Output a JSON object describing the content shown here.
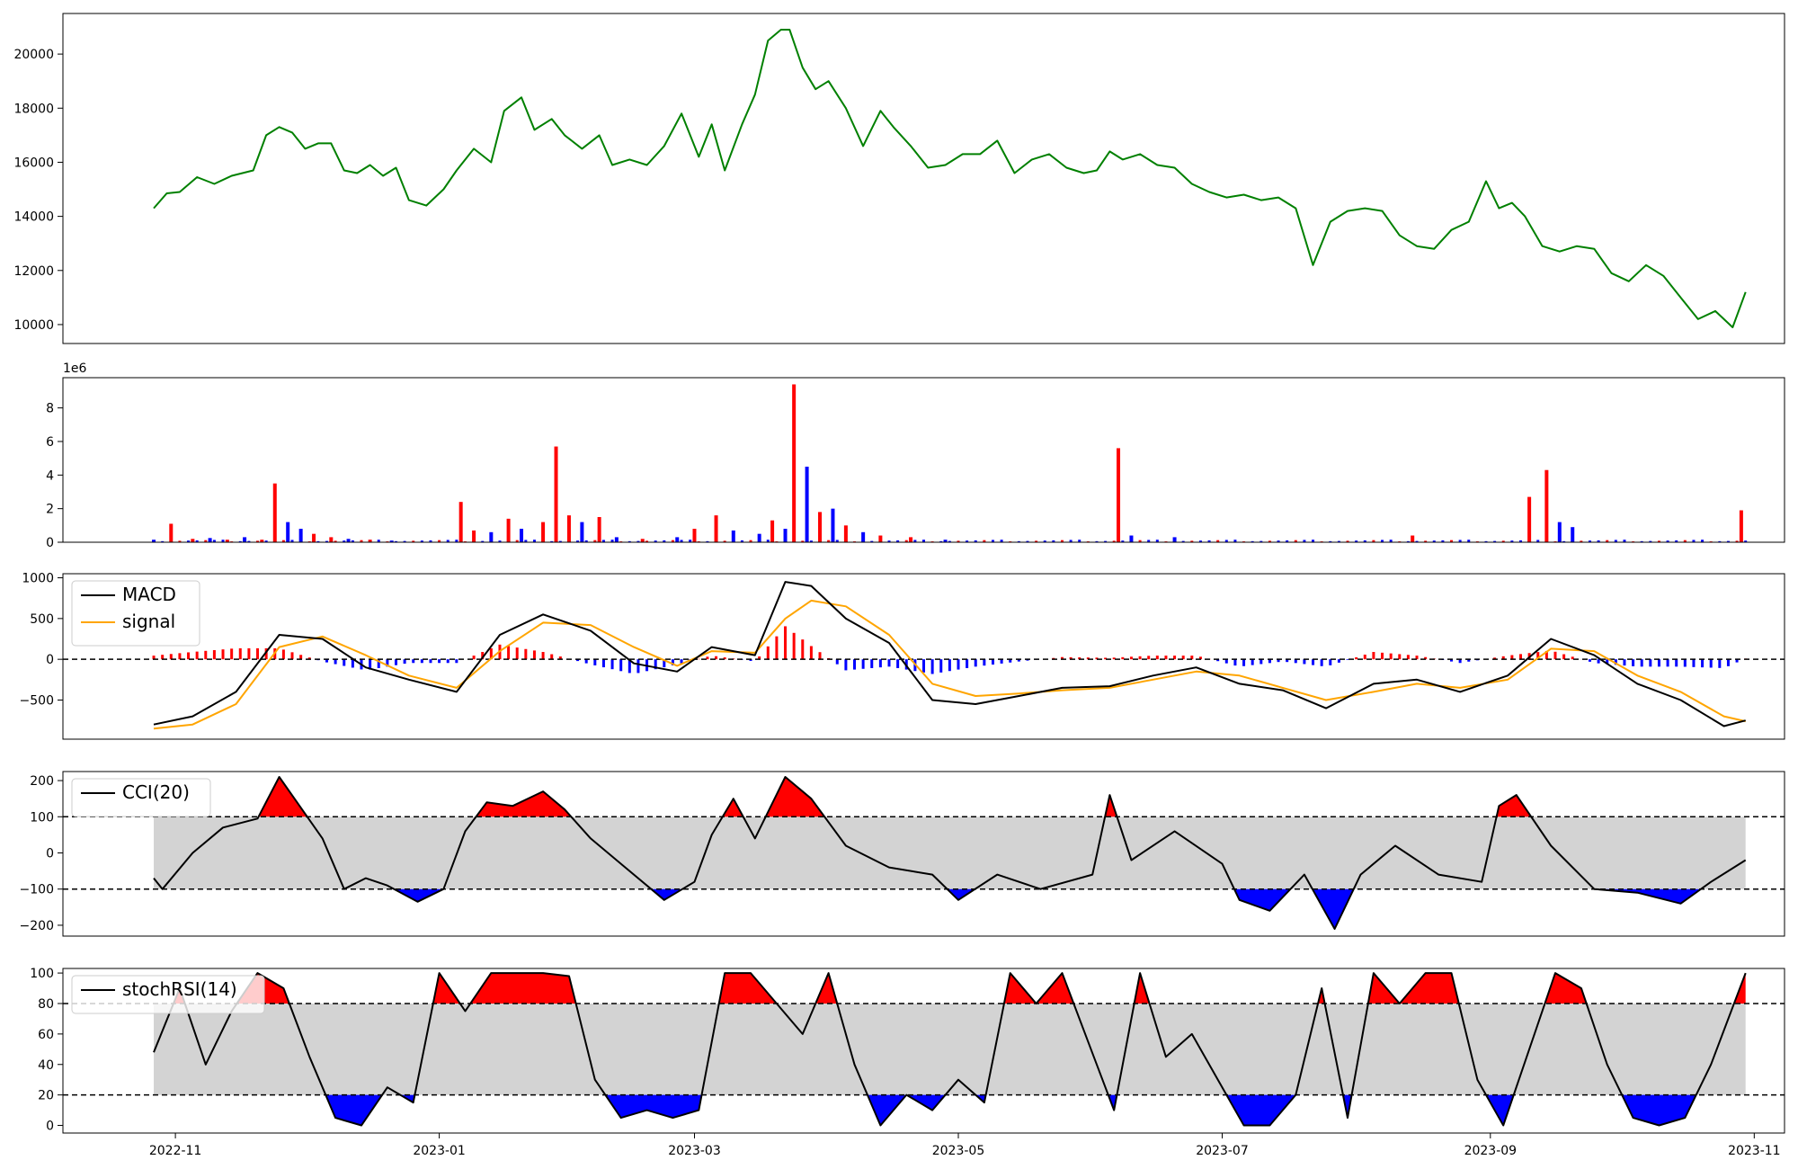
{
  "x_ticks": [
    "2022-11",
    "2023-01",
    "2023-03",
    "2023-05",
    "2023-07",
    "2023-09",
    "2023-11"
  ],
  "colors": {
    "price": "#008000",
    "up": "#ff0000",
    "down": "#0000ff",
    "macd": "#000000",
    "signal": "#ffa500",
    "band": "#d3d3d3"
  },
  "chart_data": [
    {
      "type": "line",
      "panel": "price",
      "x_range": [
        "2022-10-06",
        "2023-11-08"
      ],
      "ylim": [
        9300,
        21500
      ],
      "yticks": [
        "10000",
        "12000",
        "14000",
        "16000",
        "18000",
        "20000"
      ],
      "series": [
        {
          "x": [
            "2022-10-27",
            "2022-10-30",
            "2022-11-02",
            "2022-11-06",
            "2022-11-10",
            "2022-11-14",
            "2022-11-19",
            "2022-11-22",
            "2022-11-25",
            "2022-11-28",
            "2022-12-01",
            "2022-12-04",
            "2022-12-07",
            "2022-12-10",
            "2022-12-13",
            "2022-12-16",
            "2022-12-19",
            "2022-12-22",
            "2022-12-25",
            "2022-12-29",
            "2023-01-02",
            "2023-01-05",
            "2023-01-09",
            "2023-01-13",
            "2023-01-16",
            "2023-01-20",
            "2023-01-23",
            "2023-01-27",
            "2023-01-30",
            "2023-02-03",
            "2023-02-07",
            "2023-02-10",
            "2023-02-14",
            "2023-02-18",
            "2023-02-22",
            "2023-02-26",
            "2023-03-02",
            "2023-03-05",
            "2023-03-08",
            "2023-03-12",
            "2023-03-15",
            "2023-03-18",
            "2023-03-21",
            "2023-03-23",
            "2023-03-26",
            "2023-03-29",
            "2023-04-01",
            "2023-04-05",
            "2023-04-09",
            "2023-04-13",
            "2023-04-16",
            "2023-04-20",
            "2023-04-24",
            "2023-04-28",
            "2023-05-02",
            "2023-05-06",
            "2023-05-10",
            "2023-05-14",
            "2023-05-18",
            "2023-05-22",
            "2023-05-26",
            "2023-05-30",
            "2023-06-02",
            "2023-06-05",
            "2023-06-08",
            "2023-06-12",
            "2023-06-16",
            "2023-06-20",
            "2023-06-24",
            "2023-06-28",
            "2023-07-02",
            "2023-07-06",
            "2023-07-10",
            "2023-07-14",
            "2023-07-18",
            "2023-07-22",
            "2023-07-26",
            "2023-07-30",
            "2023-08-03",
            "2023-08-07",
            "2023-08-11",
            "2023-08-15",
            "2023-08-19",
            "2023-08-23",
            "2023-08-27",
            "2023-08-31",
            "2023-09-03",
            "2023-09-06",
            "2023-09-09",
            "2023-09-13",
            "2023-09-17",
            "2023-09-21",
            "2023-09-25",
            "2023-09-29",
            "2023-10-03",
            "2023-10-07",
            "2023-10-11",
            "2023-10-15",
            "2023-10-19",
            "2023-10-23",
            "2023-10-27",
            "2023-10-30"
          ],
          "values": [
            14300,
            14850,
            14900,
            15450,
            15200,
            15500,
            15700,
            17000,
            17300,
            17100,
            16500,
            16700,
            16700,
            15700,
            15600,
            15900,
            15500,
            15800,
            14600,
            14400,
            15000,
            15700,
            16500,
            16000,
            17900,
            18400,
            17200,
            17600,
            17000,
            16500,
            17000,
            15900,
            16100,
            15900,
            16600,
            17800,
            16200,
            17400,
            15700,
            17400,
            18500,
            20500,
            20900,
            20900,
            19500,
            18700,
            19000,
            18000,
            16600,
            17900,
            17300,
            16600,
            15800,
            15900,
            16300,
            16300,
            16800,
            15600,
            16100,
            16300,
            15800,
            15600,
            15700,
            16400,
            16100,
            16300,
            15900,
            15800,
            15200,
            14900,
            14700,
            14800,
            14600,
            14700,
            14300,
            12200,
            13800,
            14200,
            14300,
            14200,
            13300,
            12900,
            12800,
            13500,
            13800,
            15300,
            14300,
            14500,
            14000,
            12900,
            12700,
            12900,
            12800,
            11900,
            11600,
            12200,
            11800,
            11000,
            10200,
            10500,
            9900,
            11200
          ]
        }
      ],
      "volume_note": "1e6"
    },
    {
      "type": "bar",
      "panel": "volume",
      "ylim": [
        0,
        9.8
      ],
      "yticks": [
        "0",
        "2",
        "4",
        "6",
        "8"
      ],
      "offset_label": "1e6",
      "bars": [
        {
          "x": "2022-10-27",
          "v": 0.15,
          "d": "down"
        },
        {
          "x": "2022-10-31",
          "v": 1.1,
          "d": "up"
        },
        {
          "x": "2022-11-05",
          "v": 0.2,
          "d": "up"
        },
        {
          "x": "2022-11-09",
          "v": 0.25,
          "d": "down"
        },
        {
          "x": "2022-11-13",
          "v": 0.15,
          "d": "up"
        },
        {
          "x": "2022-11-17",
          "v": 0.3,
          "d": "down"
        },
        {
          "x": "2022-11-21",
          "v": 0.15,
          "d": "up"
        },
        {
          "x": "2022-11-24",
          "v": 3.5,
          "d": "up"
        },
        {
          "x": "2022-11-27",
          "v": 1.2,
          "d": "down"
        },
        {
          "x": "2022-11-30",
          "v": 0.8,
          "d": "down"
        },
        {
          "x": "2022-12-03",
          "v": 0.5,
          "d": "up"
        },
        {
          "x": "2022-12-07",
          "v": 0.3,
          "d": "up"
        },
        {
          "x": "2022-12-11",
          "v": 0.2,
          "d": "down"
        },
        {
          "x": "2022-12-16",
          "v": 0.15,
          "d": "up"
        },
        {
          "x": "2022-12-21",
          "v": 0.1,
          "d": "down"
        },
        {
          "x": "2023-01-06",
          "v": 2.4,
          "d": "up"
        },
        {
          "x": "2023-01-09",
          "v": 0.7,
          "d": "up"
        },
        {
          "x": "2023-01-13",
          "v": 0.6,
          "d": "down"
        },
        {
          "x": "2023-01-17",
          "v": 1.4,
          "d": "up"
        },
        {
          "x": "2023-01-20",
          "v": 0.8,
          "d": "down"
        },
        {
          "x": "2023-01-25",
          "v": 1.2,
          "d": "up"
        },
        {
          "x": "2023-01-28",
          "v": 5.7,
          "d": "up"
        },
        {
          "x": "2023-01-31",
          "v": 1.6,
          "d": "up"
        },
        {
          "x": "2023-02-03",
          "v": 1.2,
          "d": "down"
        },
        {
          "x": "2023-02-07",
          "v": 1.5,
          "d": "up"
        },
        {
          "x": "2023-02-11",
          "v": 0.3,
          "d": "down"
        },
        {
          "x": "2023-02-17",
          "v": 0.2,
          "d": "up"
        },
        {
          "x": "2023-02-25",
          "v": 0.3,
          "d": "down"
        },
        {
          "x": "2023-03-01",
          "v": 0.8,
          "d": "up"
        },
        {
          "x": "2023-03-06",
          "v": 1.6,
          "d": "up"
        },
        {
          "x": "2023-03-10",
          "v": 0.7,
          "d": "down"
        },
        {
          "x": "2023-03-16",
          "v": 0.5,
          "d": "down"
        },
        {
          "x": "2023-03-19",
          "v": 1.3,
          "d": "up"
        },
        {
          "x": "2023-03-22",
          "v": 0.8,
          "d": "down"
        },
        {
          "x": "2023-03-24",
          "v": 9.4,
          "d": "up"
        },
        {
          "x": "2023-03-27",
          "v": 4.5,
          "d": "down"
        },
        {
          "x": "2023-03-30",
          "v": 1.8,
          "d": "up"
        },
        {
          "x": "2023-04-02",
          "v": 2.0,
          "d": "down"
        },
        {
          "x": "2023-04-05",
          "v": 1.0,
          "d": "up"
        },
        {
          "x": "2023-04-09",
          "v": 0.6,
          "d": "down"
        },
        {
          "x": "2023-04-13",
          "v": 0.4,
          "d": "up"
        },
        {
          "x": "2023-04-20",
          "v": 0.3,
          "d": "up"
        },
        {
          "x": "2023-04-28",
          "v": 0.15,
          "d": "down"
        },
        {
          "x": "2023-06-07",
          "v": 5.6,
          "d": "up"
        },
        {
          "x": "2023-06-10",
          "v": 0.4,
          "d": "down"
        },
        {
          "x": "2023-06-20",
          "v": 0.3,
          "d": "down"
        },
        {
          "x": "2023-08-14",
          "v": 0.4,
          "d": "up"
        },
        {
          "x": "2023-09-10",
          "v": 2.7,
          "d": "up"
        },
        {
          "x": "2023-09-14",
          "v": 4.3,
          "d": "up"
        },
        {
          "x": "2023-09-17",
          "v": 1.2,
          "d": "down"
        },
        {
          "x": "2023-09-20",
          "v": 0.9,
          "d": "down"
        },
        {
          "x": "2023-10-29",
          "v": 1.9,
          "d": "up"
        }
      ]
    },
    {
      "type": "line",
      "panel": "macd",
      "ylim": [
        -980,
        1050
      ],
      "yticks": [
        "1000",
        "500",
        "0",
        "−500"
      ],
      "legend": [
        "MACD",
        "signal"
      ],
      "legend_position": "upper-left",
      "zero_line": 0,
      "x": [
        "2022-10-27",
        "2022-11-05",
        "2022-11-15",
        "2022-11-25",
        "2022-12-05",
        "2022-12-15",
        "2022-12-25",
        "2023-01-05",
        "2023-01-15",
        "2023-01-25",
        "2023-02-05",
        "2023-02-15",
        "2023-02-25",
        "2023-03-05",
        "2023-03-15",
        "2023-03-22",
        "2023-03-28",
        "2023-04-05",
        "2023-04-15",
        "2023-04-25",
        "2023-05-05",
        "2023-05-15",
        "2023-05-25",
        "2023-06-05",
        "2023-06-15",
        "2023-06-25",
        "2023-07-05",
        "2023-07-15",
        "2023-07-25",
        "2023-08-05",
        "2023-08-15",
        "2023-08-25",
        "2023-09-05",
        "2023-09-15",
        "2023-09-25",
        "2023-10-05",
        "2023-10-15",
        "2023-10-25",
        "2023-10-30"
      ],
      "macd": [
        -800,
        -700,
        -400,
        300,
        250,
        -100,
        -250,
        -400,
        300,
        550,
        350,
        -50,
        -150,
        150,
        50,
        950,
        900,
        500,
        200,
        -500,
        -550,
        -450,
        -350,
        -330,
        -200,
        -100,
        -300,
        -380,
        -600,
        -300,
        -250,
        -400,
        -200,
        250,
        50,
        -300,
        -500,
        -820,
        -750
      ],
      "signal": [
        -850,
        -800,
        -550,
        150,
        280,
        50,
        -200,
        -350,
        100,
        450,
        420,
        150,
        -80,
        100,
        80,
        500,
        720,
        650,
        300,
        -300,
        -450,
        -420,
        -380,
        -350,
        -250,
        -150,
        -200,
        -350,
        -500,
        -400,
        -300,
        -350,
        -250,
        130,
        100,
        -200,
        -400,
        -700,
        -760
      ]
    },
    {
      "type": "line",
      "panel": "cci",
      "ylim": [
        -230,
        225
      ],
      "yticks": [
        "200",
        "100",
        "0",
        "−100",
        "−200"
      ],
      "legend": [
        "CCI(20)"
      ],
      "legend_position": "upper-left",
      "bands": [
        100,
        -100
      ],
      "x": [
        "2022-10-27",
        "2022-10-29",
        "2022-11-05",
        "2022-11-12",
        "2022-11-20",
        "2022-11-25",
        "2022-12-05",
        "2022-12-10",
        "2022-12-15",
        "2022-12-20",
        "2022-12-27",
        "2023-01-02",
        "2023-01-07",
        "2023-01-12",
        "2023-01-18",
        "2023-01-25",
        "2023-01-30",
        "2023-02-05",
        "2023-02-12",
        "2023-02-22",
        "2023-03-01",
        "2023-03-05",
        "2023-03-10",
        "2023-03-15",
        "2023-03-22",
        "2023-03-28",
        "2023-04-05",
        "2023-04-15",
        "2023-04-25",
        "2023-05-01",
        "2023-05-10",
        "2023-05-20",
        "2023-06-01",
        "2023-06-05",
        "2023-06-10",
        "2023-06-20",
        "2023-07-01",
        "2023-07-05",
        "2023-07-12",
        "2023-07-20",
        "2023-07-27",
        "2023-08-02",
        "2023-08-10",
        "2023-08-20",
        "2023-08-30",
        "2023-09-03",
        "2023-09-07",
        "2023-09-15",
        "2023-09-25",
        "2023-10-05",
        "2023-10-15",
        "2023-10-22",
        "2023-10-30"
      ],
      "values": [
        -70,
        -100,
        0,
        70,
        95,
        210,
        40,
        -100,
        -70,
        -90,
        -135,
        -100,
        60,
        140,
        130,
        170,
        120,
        40,
        -30,
        -130,
        -80,
        50,
        150,
        40,
        210,
        150,
        20,
        -40,
        -60,
        -130,
        -60,
        -100,
        -60,
        160,
        -20,
        60,
        -30,
        -130,
        -160,
        -60,
        -210,
        -60,
        20,
        -60,
        -80,
        130,
        160,
        20,
        -100,
        -110,
        -140,
        -80,
        -20
      ]
    },
    {
      "type": "line",
      "panel": "stochrsi",
      "ylim": [
        -5,
        103
      ],
      "yticks": [
        "100",
        "80",
        "60",
        "40",
        "20",
        "0"
      ],
      "legend": [
        "stochRSI(14)"
      ],
      "legend_position": "upper-left",
      "bands": [
        80,
        20
      ],
      "x": [
        "2022-10-27",
        "2022-11-02",
        "2022-11-08",
        "2022-11-14",
        "2022-11-20",
        "2022-11-26",
        "2022-12-02",
        "2022-12-08",
        "2022-12-14",
        "2022-12-20",
        "2022-12-26",
        "2023-01-01",
        "2023-01-07",
        "2023-01-13",
        "2023-01-19",
        "2023-01-25",
        "2023-01-31",
        "2023-02-06",
        "2023-02-12",
        "2023-02-18",
        "2023-02-24",
        "2023-03-02",
        "2023-03-08",
        "2023-03-14",
        "2023-03-20",
        "2023-03-26",
        "2023-04-01",
        "2023-04-07",
        "2023-04-13",
        "2023-04-19",
        "2023-04-25",
        "2023-05-01",
        "2023-05-07",
        "2023-05-13",
        "2023-05-19",
        "2023-05-25",
        "2023-05-31",
        "2023-06-06",
        "2023-06-12",
        "2023-06-18",
        "2023-06-24",
        "2023-06-30",
        "2023-07-06",
        "2023-07-12",
        "2023-07-18",
        "2023-07-24",
        "2023-07-30",
        "2023-08-05",
        "2023-08-11",
        "2023-08-17",
        "2023-08-23",
        "2023-08-29",
        "2023-09-04",
        "2023-09-10",
        "2023-09-16",
        "2023-09-22",
        "2023-09-28",
        "2023-10-04",
        "2023-10-10",
        "2023-10-16",
        "2023-10-22",
        "2023-10-30"
      ],
      "values": [
        48,
        90,
        40,
        75,
        100,
        90,
        45,
        5,
        0,
        25,
        15,
        100,
        75,
        100,
        100,
        100,
        98,
        30,
        5,
        10,
        5,
        10,
        100,
        100,
        80,
        60,
        100,
        40,
        0,
        20,
        10,
        30,
        15,
        100,
        80,
        100,
        55,
        10,
        100,
        45,
        60,
        30,
        0,
        0,
        20,
        90,
        5,
        100,
        80,
        100,
        100,
        30,
        0,
        50,
        100,
        90,
        40,
        5,
        0,
        5,
        40,
        100
      ]
    }
  ]
}
